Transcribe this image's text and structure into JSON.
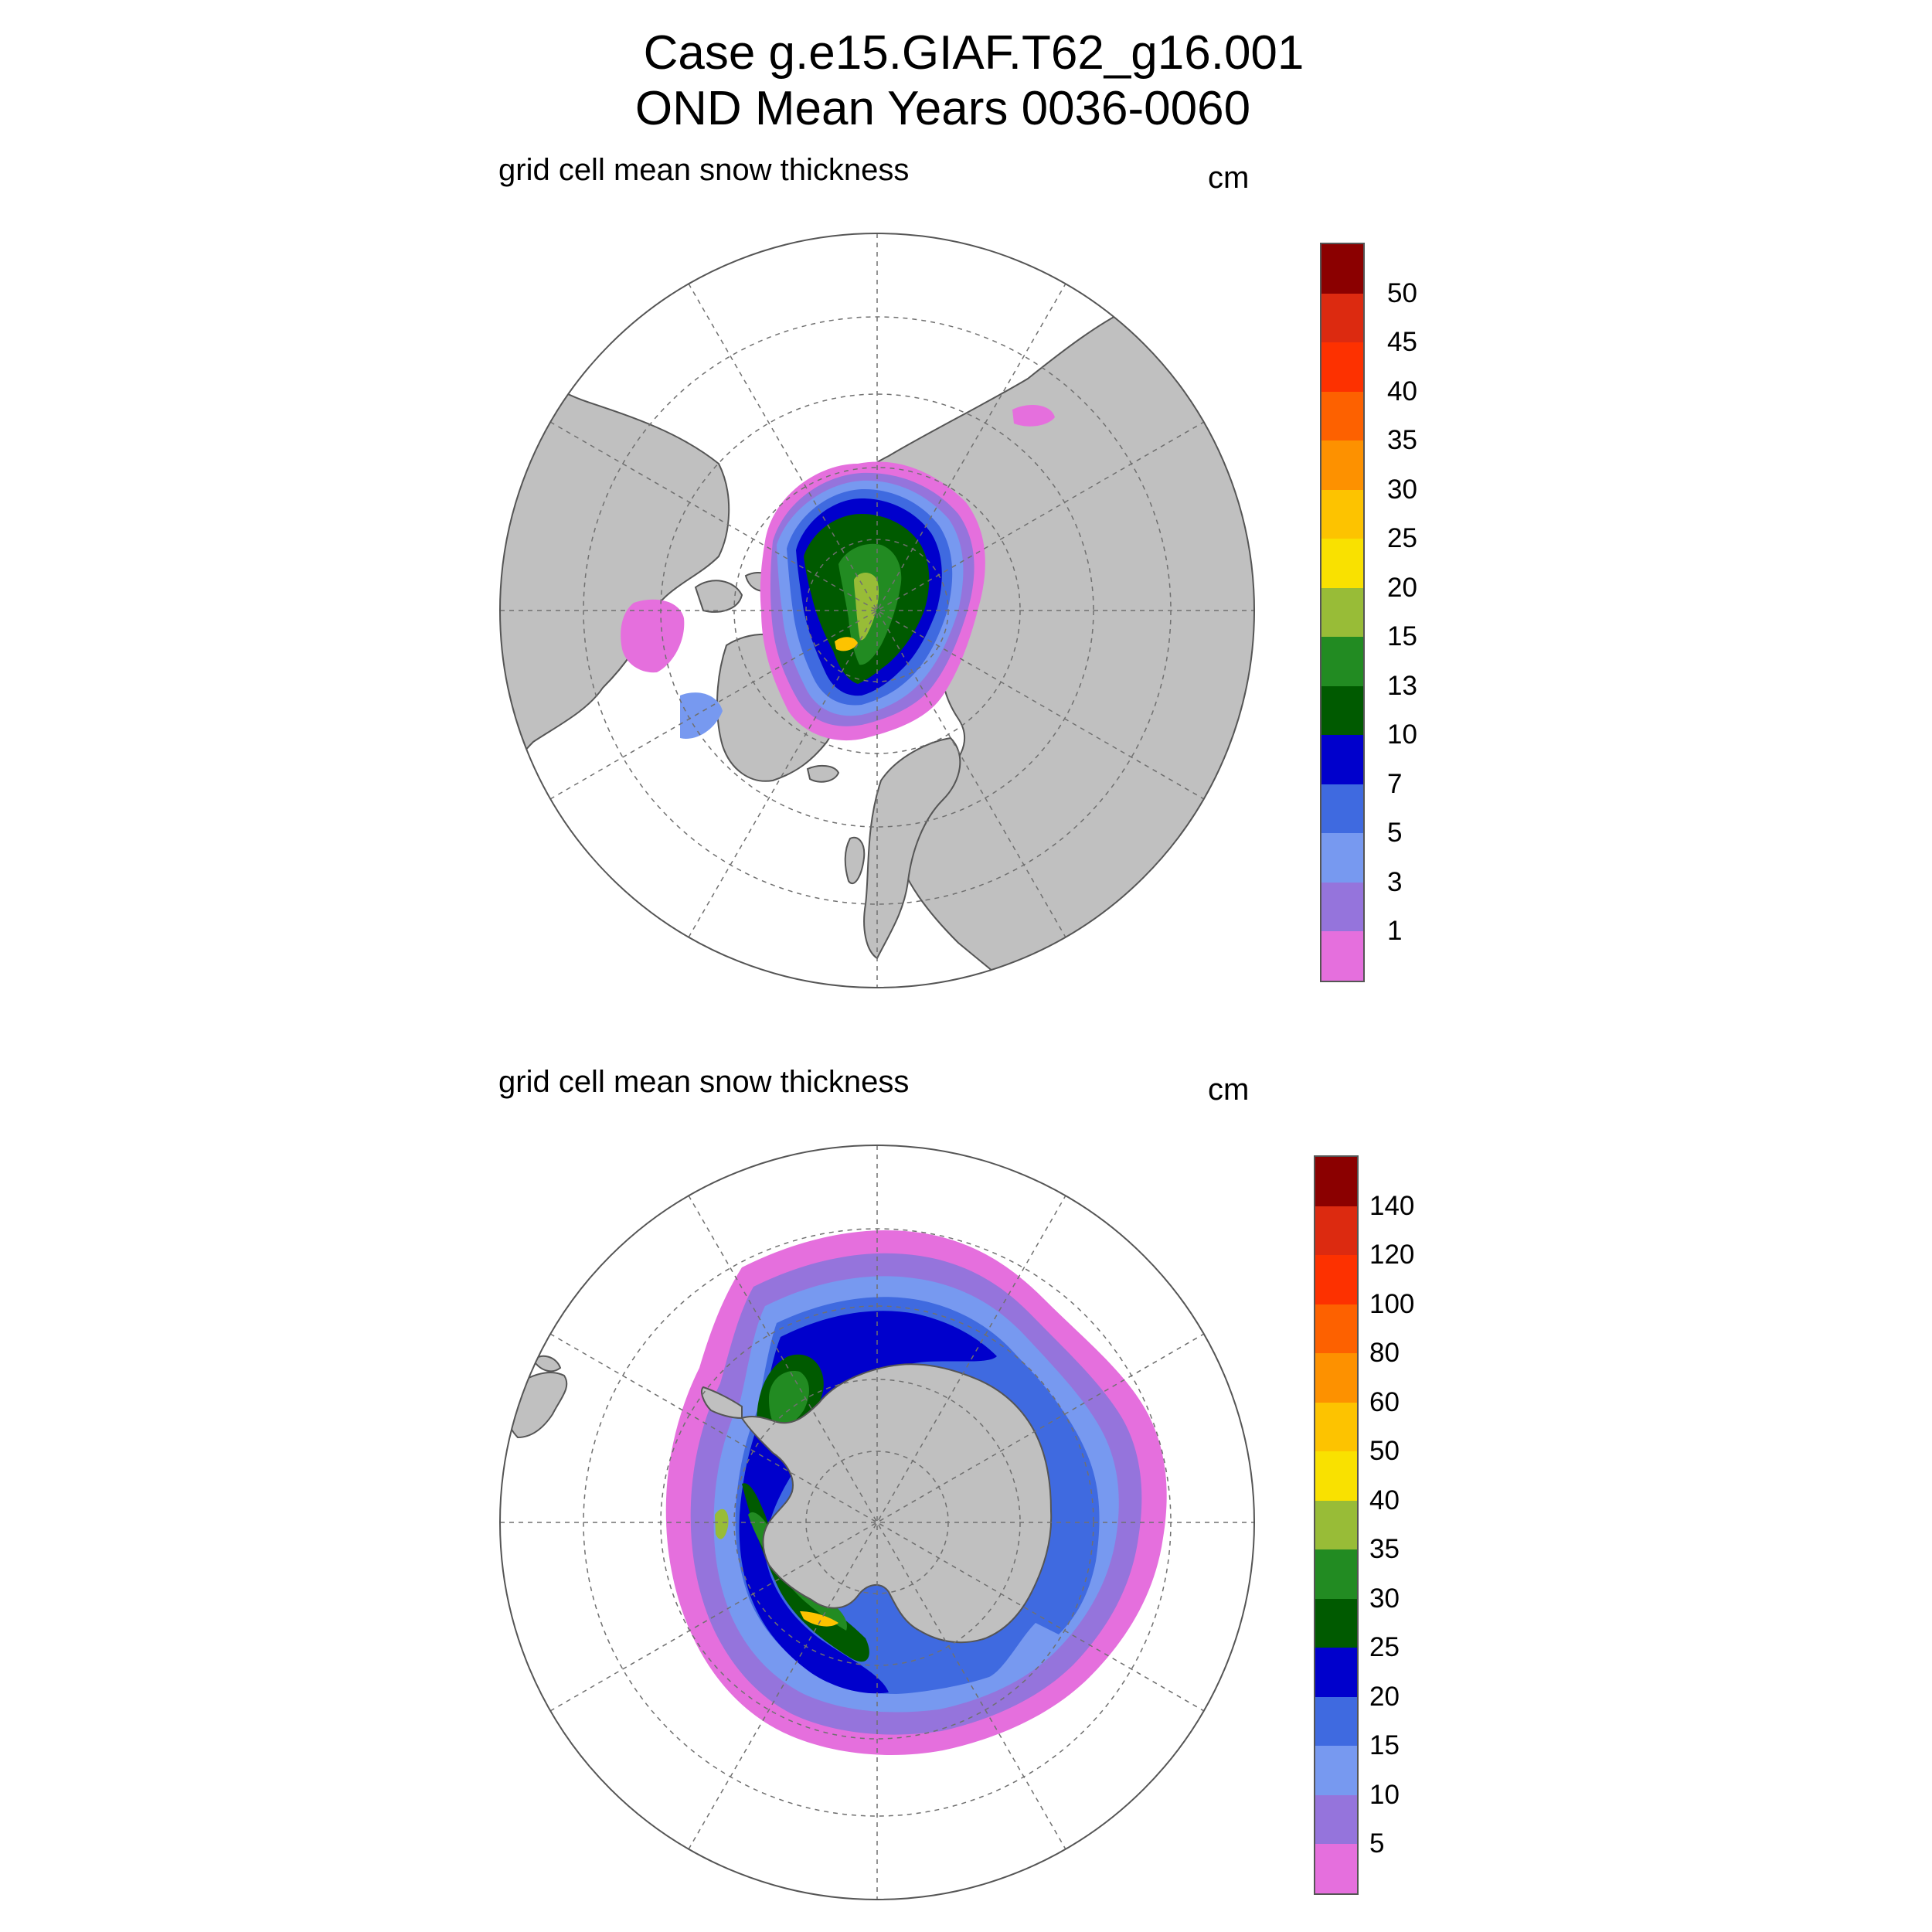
{
  "header": {
    "title_line1": "Case g.e15.GIAF.T62_g16.001",
    "title_line2": "OND Mean    Years 0036-0060"
  },
  "panels": [
    {
      "id": "arctic",
      "label": "grid cell mean snow thickness",
      "units": "cm",
      "colorbar": {
        "colors": [
          "#e56fdd",
          "#9574dc",
          "#7799f0",
          "#3f6ae0",
          "#0000cc",
          "#005a00",
          "#228b22",
          "#98bc37",
          "#f9e100",
          "#fdc300",
          "#fd9100",
          "#fd6100",
          "#fd3100",
          "#dc2a10",
          "#8b0000"
        ],
        "labels": [
          "1",
          "3",
          "5",
          "7",
          "10",
          "13",
          "15",
          "20",
          "25",
          "30",
          "35",
          "40",
          "45",
          "50"
        ]
      }
    },
    {
      "id": "antarctic",
      "label": "grid cell mean snow thickness",
      "units": "cm",
      "colorbar": {
        "colors": [
          "#e56fdd",
          "#9574dc",
          "#7799f0",
          "#3f6ae0",
          "#0000cc",
          "#005a00",
          "#228b22",
          "#98bc37",
          "#f9e100",
          "#fdc300",
          "#fd9100",
          "#fd6100",
          "#fd3100",
          "#dc2a10",
          "#8b0000"
        ],
        "labels": [
          "5",
          "10",
          "15",
          "20",
          "25",
          "30",
          "35",
          "40",
          "50",
          "60",
          "80",
          "100",
          "120",
          "140"
        ]
      }
    }
  ],
  "map_style": {
    "land_color": "#c0c0c0",
    "ocean_color": "#ffffff",
    "grid_color": "#707070",
    "projection": "polar stereographic"
  }
}
